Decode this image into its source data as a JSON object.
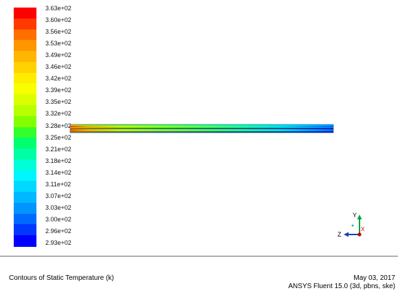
{
  "colorbar": {
    "colors": [
      "#ff0000",
      "#ff3a00",
      "#ff6f00",
      "#ff9600",
      "#ffb600",
      "#ffd200",
      "#ffec00",
      "#f7ff00",
      "#dcff00",
      "#b8ff00",
      "#84ff00",
      "#35ff2a",
      "#00ff6e",
      "#00ffa4",
      "#00ffd6",
      "#00f5ff",
      "#00d8ff",
      "#00b8ff",
      "#0094ff",
      "#006aff",
      "#0038ff",
      "#0000ff"
    ],
    "labels": [
      "3.63e+02",
      "3.60e+02",
      "3.56e+02",
      "3.53e+02",
      "3.49e+02",
      "3.46e+02",
      "3.42e+02",
      "3.39e+02",
      "3.35e+02",
      "3.32e+02",
      "3.28e+02",
      "3.25e+02",
      "3.21e+02",
      "3.18e+02",
      "3.14e+02",
      "3.11e+02",
      "3.07e+02",
      "3.03e+02",
      "3.00e+02",
      "2.96e+02",
      "2.93e+02"
    ]
  },
  "axes": {
    "y_label": "Y",
    "z_label": "Z",
    "x_label": "X"
  },
  "footer": {
    "title": "Contours of Static Temperature (k)",
    "date": "May 03, 2017",
    "version": "ANSYS Fluent 15.0 (3d, pbns, ske)"
  }
}
